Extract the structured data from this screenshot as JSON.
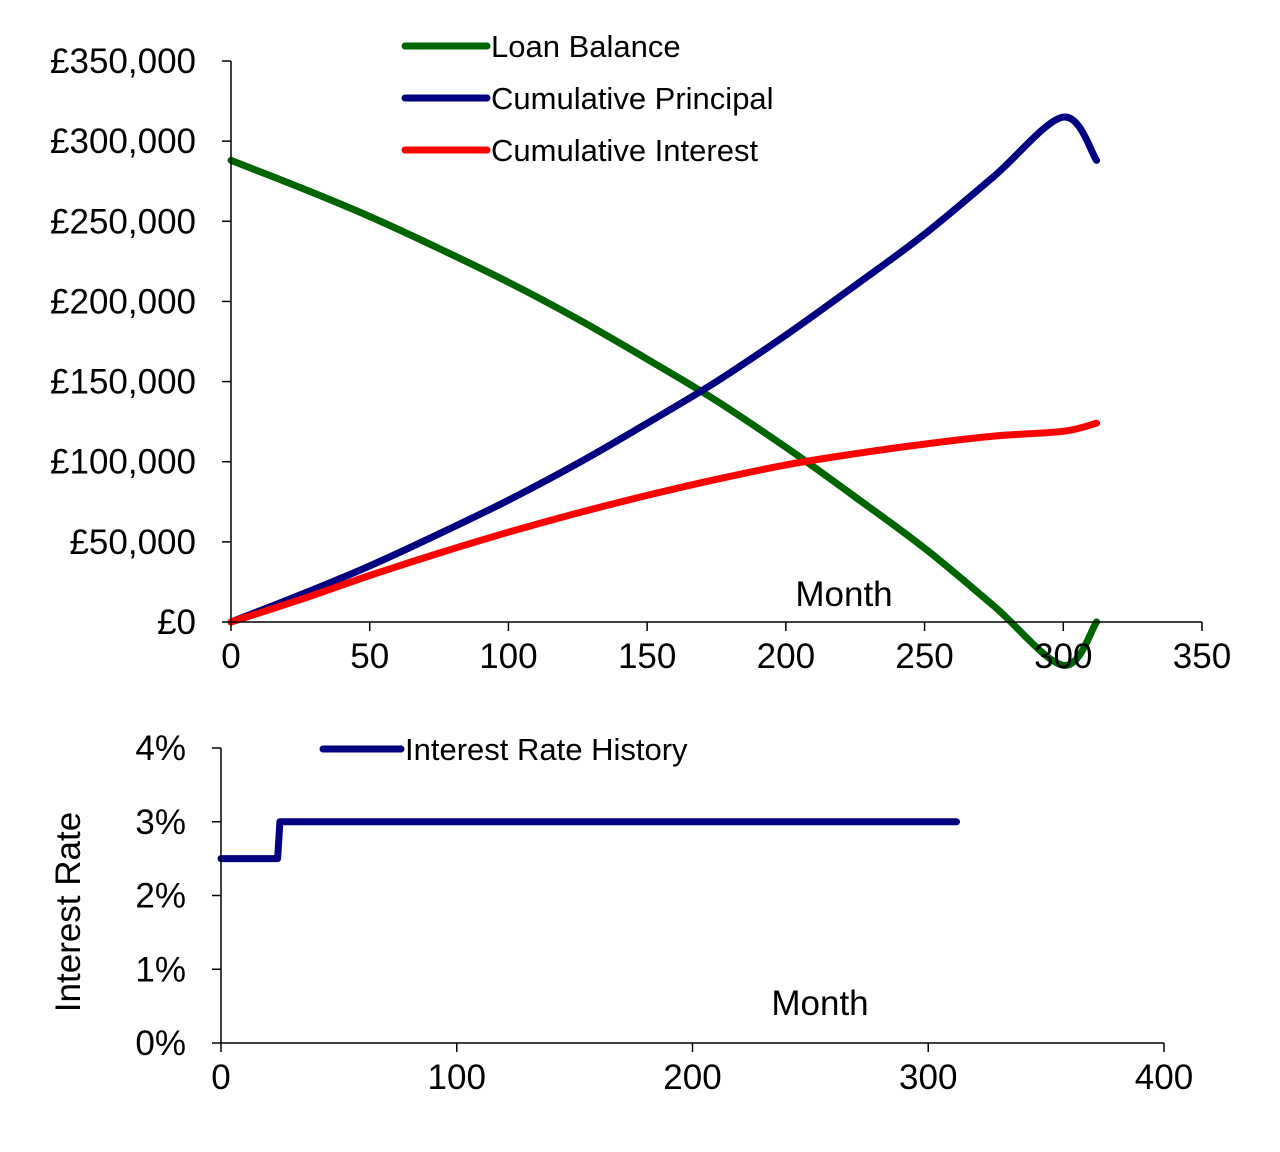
{
  "colors": {
    "loan_balance": "#006400",
    "cumulative_principal": "#000080",
    "cumulative_interest": "#ff0000",
    "interest_rate": "#000080",
    "axis": "#000000",
    "background": "#ffffff"
  },
  "chart_data": [
    {
      "type": "line",
      "title": "",
      "xlabel": "Month",
      "ylabel": "",
      "xlim": [
        0,
        350
      ],
      "ylim": [
        0,
        350000
      ],
      "x_ticks": [
        0,
        50,
        100,
        150,
        200,
        250,
        300,
        350
      ],
      "x_tick_labels": [
        "0",
        "50",
        "100",
        "150",
        "200",
        "250",
        "300",
        "350"
      ],
      "y_ticks": [
        0,
        50000,
        100000,
        150000,
        200000,
        250000,
        300000,
        350000
      ],
      "y_tick_labels": [
        "£0",
        "£50,000",
        "£100,000",
        "£150,000",
        "£200,000",
        "£250,000",
        "£300,000",
        "£350,000"
      ],
      "grid": false,
      "legend_position": "top-center",
      "series": [
        {
          "name": "Loan Balance",
          "color": "#006400",
          "x": [
            0,
            25,
            50,
            75,
            100,
            125,
            150,
            175,
            200,
            225,
            250,
            275,
            300,
            312
          ],
          "y": [
            288000,
            271000,
            253000,
            233000,
            212000,
            189000,
            164000,
            138000,
            109000,
            78000,
            46000,
            10000,
            -27000,
            0
          ]
        },
        {
          "name": "Cumulative Principal",
          "color": "#000080",
          "x": [
            0,
            25,
            50,
            75,
            100,
            125,
            150,
            175,
            200,
            225,
            250,
            275,
            300,
            312
          ],
          "y": [
            0,
            17000,
            35000,
            55000,
            76000,
            99000,
            124000,
            150000,
            179000,
            210000,
            242000,
            278000,
            315000,
            288000
          ]
        },
        {
          "name": "Cumulative Interest",
          "color": "#ff0000",
          "x": [
            0,
            25,
            50,
            75,
            100,
            125,
            150,
            175,
            200,
            225,
            250,
            275,
            300,
            312
          ],
          "y": [
            0,
            14000,
            29000,
            43000,
            56000,
            68000,
            79000,
            89000,
            98000,
            105000,
            111000,
            116000,
            119000,
            124000
          ]
        }
      ]
    },
    {
      "type": "line",
      "title": "",
      "xlabel": "Month",
      "ylabel": "Interest Rate",
      "xlim": [
        0,
        400
      ],
      "ylim": [
        0,
        0.04
      ],
      "x_ticks": [
        0,
        100,
        200,
        300,
        400
      ],
      "x_tick_labels": [
        "0",
        "100",
        "200",
        "300",
        "400"
      ],
      "y_ticks": [
        0,
        0.01,
        0.02,
        0.03,
        0.04
      ],
      "y_tick_labels": [
        "0%",
        "1%",
        "2%",
        "3%",
        "4%"
      ],
      "grid": false,
      "legend_position": "top-left",
      "series": [
        {
          "name": "Interest Rate History",
          "color": "#000080",
          "x": [
            0,
            24,
            25,
            312
          ],
          "y": [
            0.025,
            0.025,
            0.03,
            0.03
          ]
        }
      ]
    }
  ]
}
